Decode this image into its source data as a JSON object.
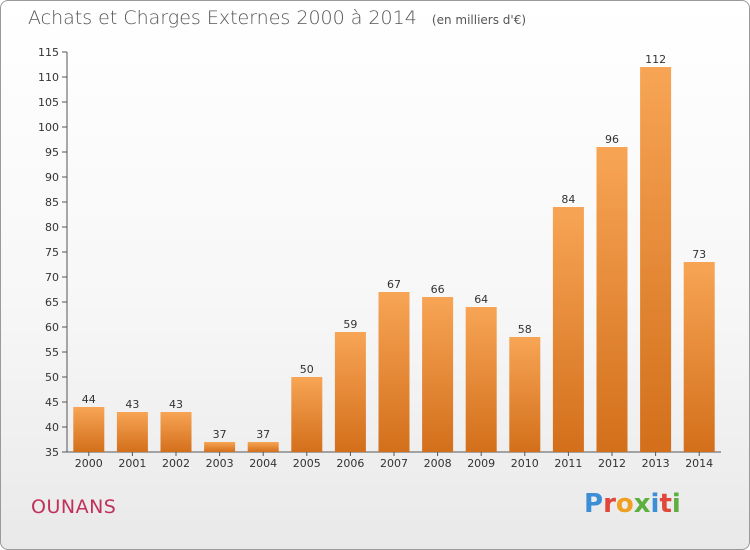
{
  "header": {
    "title": "Achats et Charges Externes 2000 à 2014",
    "unit": "(en milliers d'€)"
  },
  "footer": {
    "commune": "OUNANS",
    "logo": "Proxiti"
  },
  "colors": {
    "bar_light": "#f7a555",
    "bar_dark": "#d36f1b",
    "commune": "#c0305a",
    "logo_letters": [
      "#3c8fd6",
      "#e0463a",
      "#f0a020",
      "#5db040",
      "#3c8fd6",
      "#e0463a",
      "#5db040"
    ]
  },
  "chart_data": {
    "type": "bar",
    "title": "Achats et Charges Externes 2000 à 2014",
    "subtitle": "(en milliers d'€)",
    "xlabel": "",
    "ylabel": "",
    "categories": [
      "2000",
      "2001",
      "2002",
      "2003",
      "2004",
      "2005",
      "2006",
      "2007",
      "2008",
      "2009",
      "2010",
      "2011",
      "2012",
      "2013",
      "2014"
    ],
    "values": [
      44,
      43,
      43,
      37,
      37,
      50,
      59,
      67,
      66,
      64,
      58,
      84,
      96,
      112,
      73
    ],
    "ylim": [
      35,
      115
    ],
    "yticks": [
      35,
      40,
      45,
      50,
      55,
      60,
      65,
      70,
      75,
      80,
      85,
      90,
      95,
      100,
      105,
      110,
      115
    ],
    "grid": false,
    "legend": "none"
  }
}
